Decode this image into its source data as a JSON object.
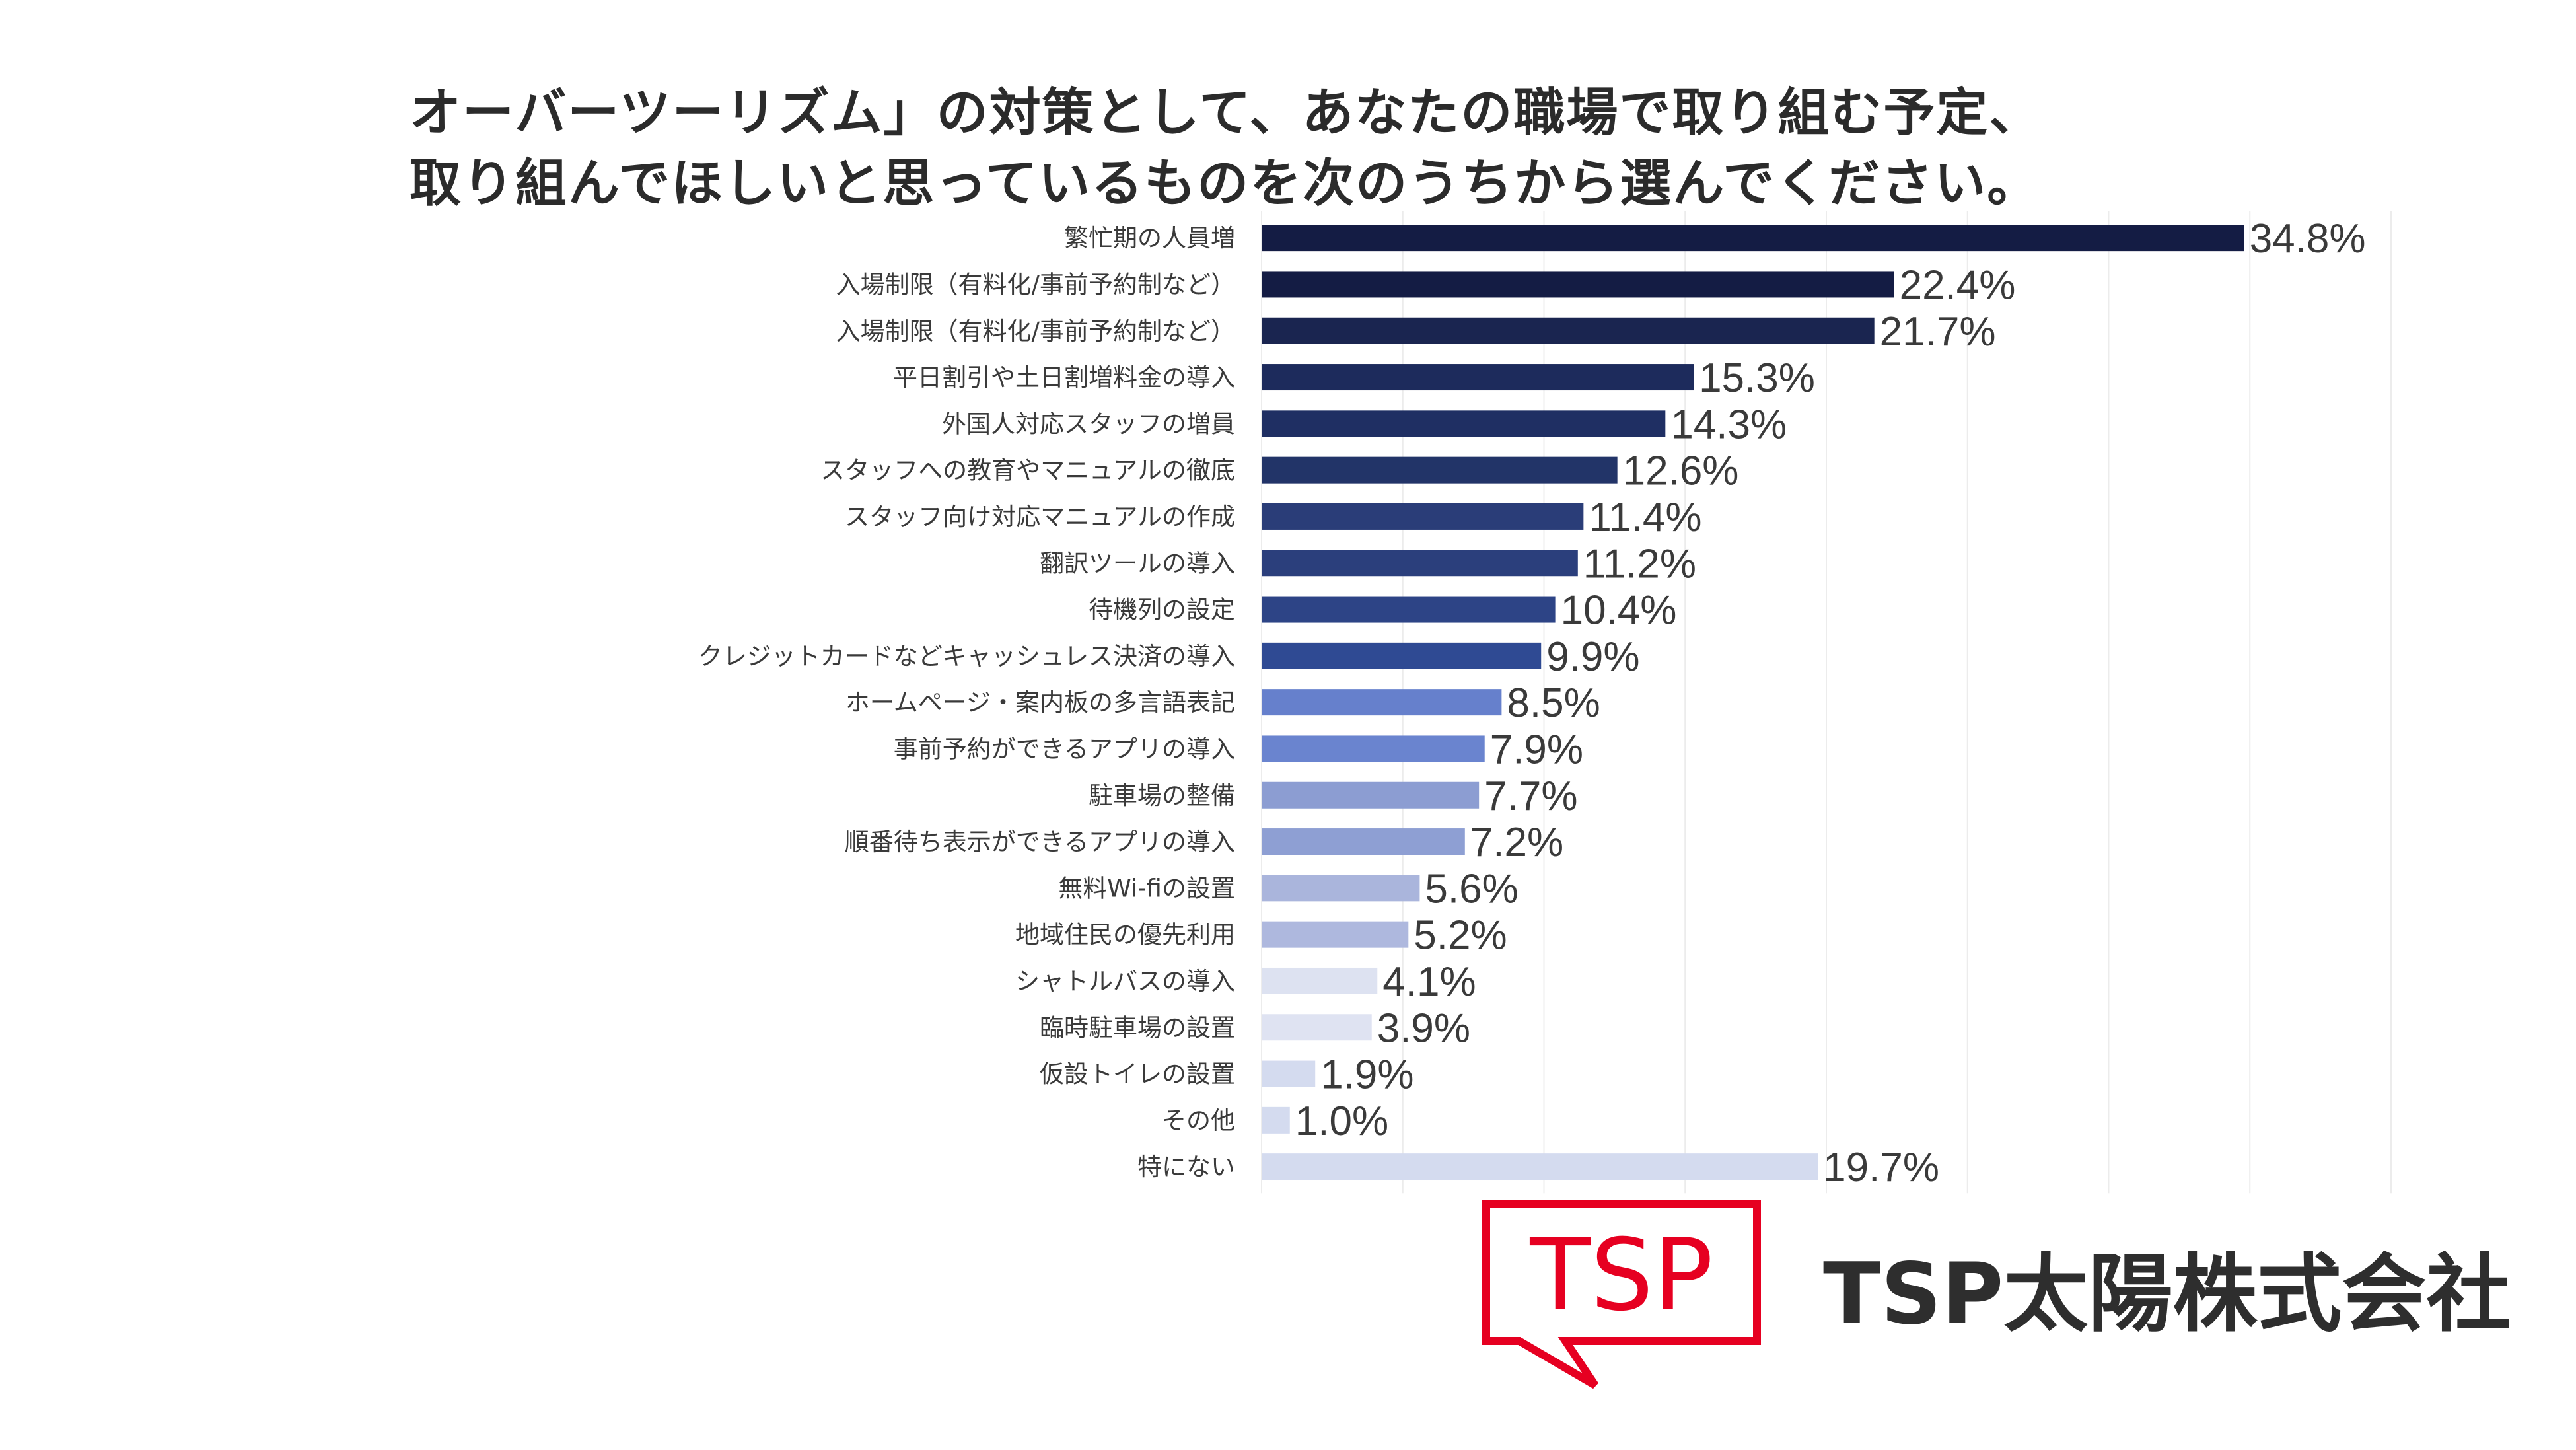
{
  "title": {
    "line1": "オーバーツーリズム」の対策として、あなたの職場で取り組む予定、",
    "line2": "取り組んでほしいと思っているものを次のうちから選んでください。"
  },
  "chart_data": {
    "type": "bar",
    "orientation": "horizontal",
    "categories": [
      "繁忙期の人員増",
      "入場制限（有料化/事前予約制など）",
      "入場制限（有料化/事前予約制など）",
      "平日割引や土日割増料金の導入",
      "外国人対応スタッフの増員",
      "スタッフへの教育やマニュアルの徹底",
      "スタッフ向け対応マニュアルの作成",
      "翻訳ツールの導入",
      "待機列の設定",
      "クレジットカードなどキャッシュレス決済の導入",
      "ホームページ・案内板の多言語表記",
      "事前予約ができるアプリの導入",
      "駐車場の整備",
      "順番待ち表示ができるアプリの導入",
      "無料Wi-fiの設置",
      "地域住民の優先利用",
      "シャトルバスの導入",
      "臨時駐車場の設置",
      "仮設トイレの設置",
      "その他",
      "特にない"
    ],
    "values": [
      34.8,
      22.4,
      21.7,
      15.3,
      14.3,
      12.6,
      11.4,
      11.2,
      10.4,
      9.9,
      8.5,
      7.9,
      7.7,
      7.2,
      5.6,
      5.2,
      4.1,
      3.9,
      1.9,
      1.0,
      19.7
    ],
    "value_labels": [
      "34.8%",
      "22.4%",
      "21.7%",
      "15.3%",
      "14.3%",
      "12.6%",
      "11.4%",
      "11.2%",
      "10.4%",
      "9.9%",
      "8.5%",
      "7.9%",
      "7.7%",
      "7.2%",
      "5.6%",
      "5.2%",
      "4.1%",
      "3.9%",
      "1.9%",
      "1.0%",
      "19.7%"
    ],
    "colors": [
      "#141c44",
      "#141c44",
      "#1a2550",
      "#1d2b5c",
      "#1f2f63",
      "#223468",
      "#2a3d78",
      "#2b3f7c",
      "#2d4486",
      "#2f4a93",
      "#6680cc",
      "#6a84cf",
      "#8c9dd2",
      "#8e9fd3",
      "#aab5dc",
      "#aeb8de",
      "#dde2f1",
      "#dfe3f2",
      "#d4dbef",
      "#d4dbef",
      "#d4dbef"
    ],
    "xlim": [
      0,
      40
    ],
    "grid": true,
    "legend": "none"
  },
  "brand": {
    "logo_text": "TSP",
    "company_name": "TSP太陽株式会社",
    "accent_color": "#e60021"
  }
}
